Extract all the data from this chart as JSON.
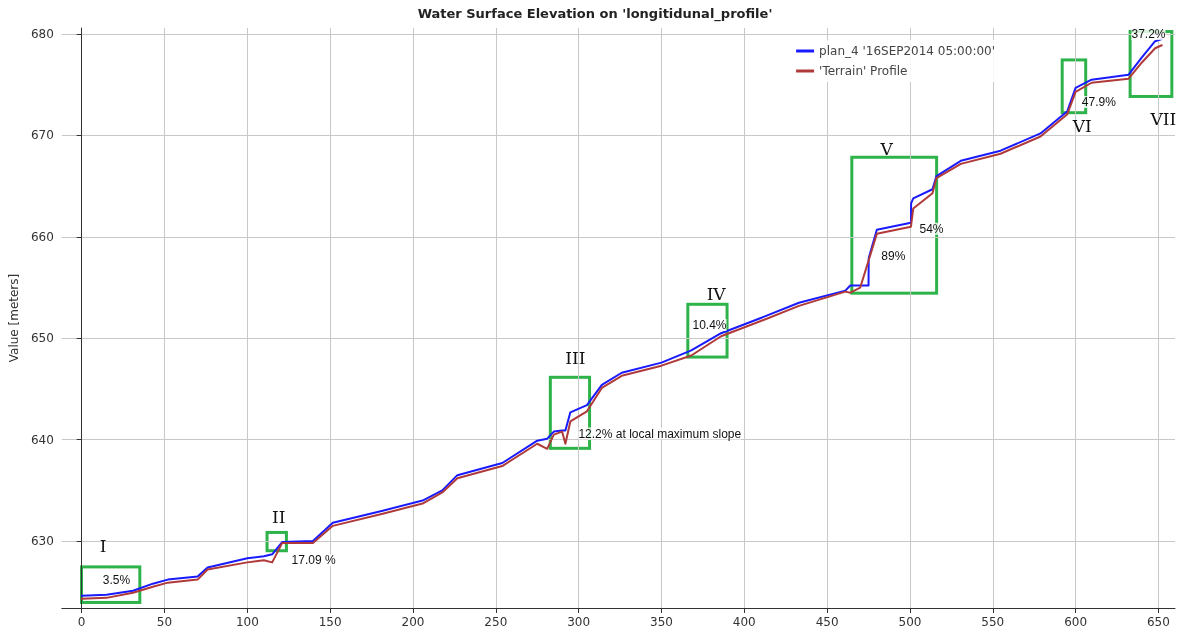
{
  "chart_data": {
    "type": "line",
    "title": "Water Surface Elevation on 'longitidunal_profile'",
    "ylabel": "Value [meters]",
    "xlim": [
      -12,
      660
    ],
    "ylim": [
      623.4,
      680.6
    ],
    "xticks": [
      0,
      50,
      100,
      150,
      200,
      250,
      300,
      350,
      400,
      450,
      500,
      550,
      600,
      650
    ],
    "yticks": [
      630,
      640,
      650,
      660,
      670,
      680
    ],
    "grid": true,
    "legend": "top right",
    "marker": "none",
    "line_style": "solid",
    "series": [
      {
        "name": "plan_4 '16SEP2014 05:00:00'",
        "color": "#1a1aff",
        "x": [
          0,
          15,
          31,
          43,
          52,
          70,
          76,
          100,
          110,
          115,
          121,
          139.6,
          151.6,
          181.7,
          205.8,
          217.7,
          226.8,
          253.9,
          275,
          281,
          285,
          290,
          292,
          295,
          305,
          314,
          326,
          350,
          368,
          386,
          410,
          433,
          461,
          464,
          475,
          475.1,
          480,
          500.6,
          500.7,
          502,
          513.6,
          516,
          530.7,
          554.7,
          578.8,
          595,
          600,
          609.6,
          632,
          640,
          648,
          652
        ],
        "values": [
          624.6,
          624.7,
          625.1,
          625.8,
          626.2,
          626.5,
          627.4,
          628.3,
          628.5,
          628.7,
          629.9,
          630,
          631.8,
          633,
          634,
          635,
          636.5,
          637.7,
          639.9,
          640.1,
          640.8,
          640.9,
          640.9,
          642.7,
          643.4,
          645.4,
          646.6,
          647.6,
          648.8,
          650.5,
          652,
          653.5,
          654.7,
          655.2,
          655.2,
          657.9,
          660.7,
          661.4,
          663.3,
          663.8,
          664.7,
          666,
          667.5,
          668.5,
          670.2,
          672.4,
          674.7,
          675.5,
          676,
          677.7,
          679.3,
          679.5
        ]
      },
      {
        "name": "'Terrain' Profile",
        "color": "#b03a3a",
        "x": [
          0,
          15,
          31,
          43,
          52,
          70,
          76,
          100,
          110,
          115,
          121,
          139.6,
          151.6,
          181.7,
          205.8,
          217.7,
          226.8,
          253.9,
          275,
          281,
          285,
          290,
          292,
          295,
          305,
          314,
          326,
          350,
          368,
          386,
          410,
          433,
          461,
          464,
          470,
          480,
          500.6,
          502,
          513.6,
          516,
          530.7,
          554.7,
          578.8,
          595,
          600,
          609.6,
          632,
          640,
          648,
          652
        ],
        "values": [
          624.3,
          624.4,
          624.9,
          625.5,
          625.9,
          626.2,
          627.2,
          627.9,
          628.1,
          627.9,
          629.8,
          629.8,
          631.5,
          632.7,
          633.7,
          634.8,
          636.2,
          637.4,
          639.6,
          639.1,
          640.5,
          640.8,
          639.6,
          641.8,
          642.8,
          645.1,
          646.3,
          647.3,
          648.3,
          650.2,
          651.7,
          653.2,
          654.6,
          654.5,
          655,
          660.3,
          661,
          662.8,
          664.3,
          665.8,
          667.2,
          668.2,
          669.9,
          672.1,
          674.3,
          675.2,
          675.6,
          677.2,
          678.6,
          678.9
        ]
      }
    ],
    "annotations": [
      "I",
      "3.5%",
      "II",
      "17.09 %",
      "III",
      "12.2% at local maximum slope",
      "IV",
      "10.4%",
      "V",
      "89%",
      "54%",
      "VI",
      "47.9%",
      "37.2%",
      "VII"
    ]
  }
}
